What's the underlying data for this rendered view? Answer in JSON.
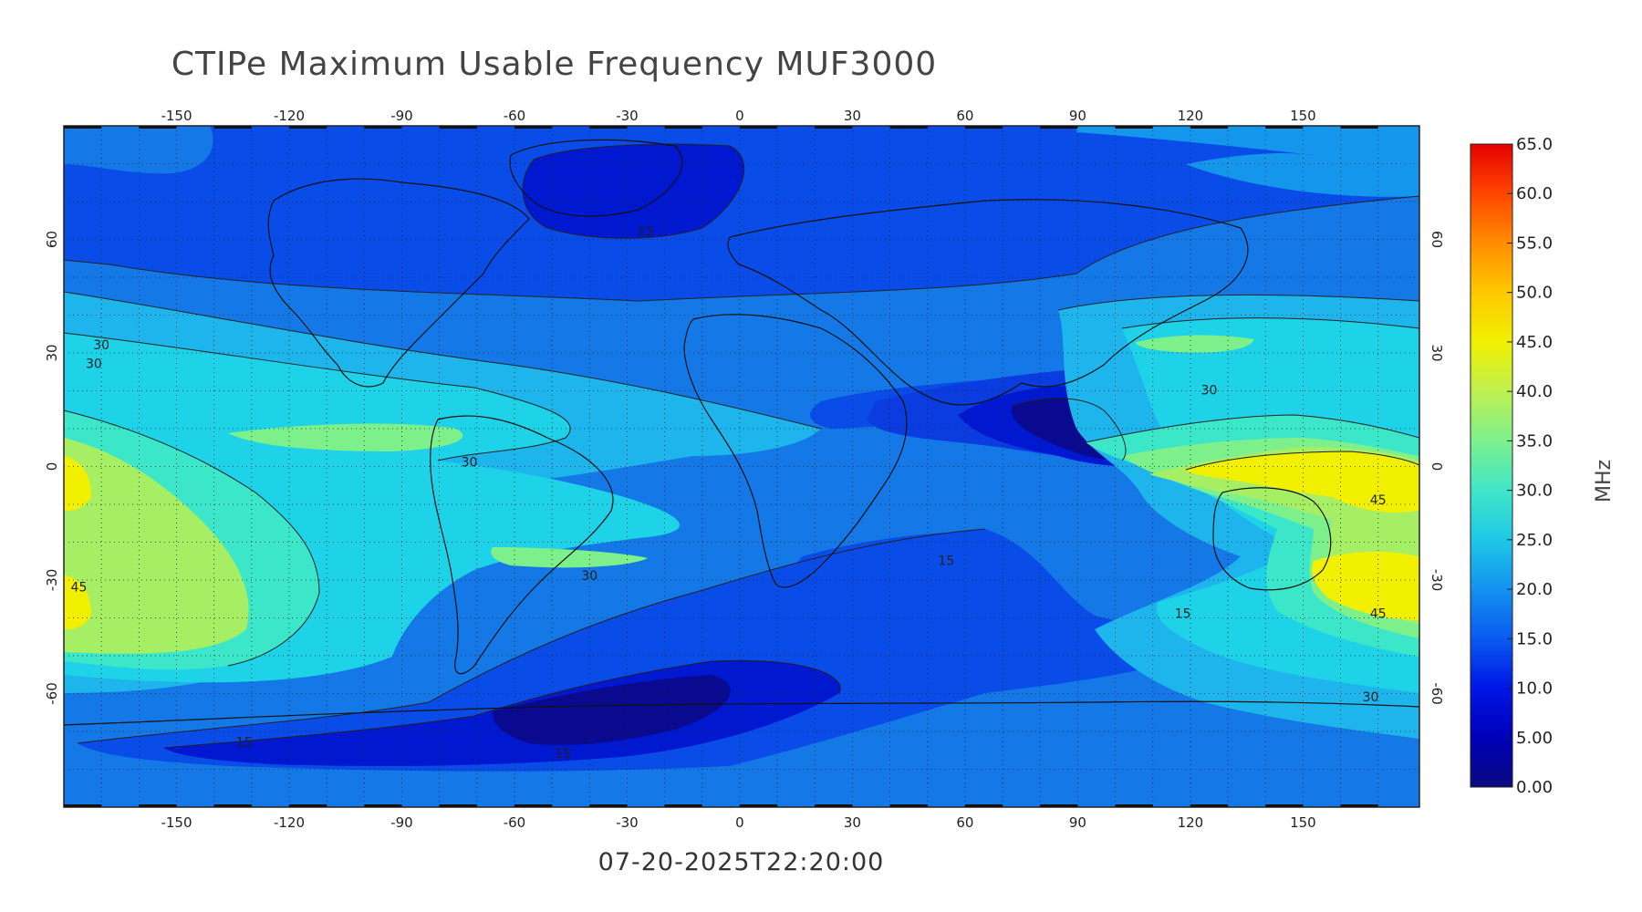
{
  "title": "CTIPe Maximum Usable Frequency MUF3000",
  "timestamp": "07-20-2025T22:20:00",
  "colorbar": {
    "unit": "MHz",
    "range": [
      0,
      65
    ],
    "ticks": [
      "65.0",
      "60.0",
      "55.0",
      "50.0",
      "45.0",
      "40.0",
      "35.0",
      "30.0",
      "25.0",
      "20.0",
      "15.0",
      "10.0",
      "5.00",
      "0.00"
    ],
    "colors": [
      "#0a0a80",
      "#0000b8",
      "#0016e6",
      "#0a5af0",
      "#1491f0",
      "#1ec8e6",
      "#40e6c8",
      "#7df08c",
      "#bef050",
      "#f0f000",
      "#ffc800",
      "#ff8c00",
      "#ff4600",
      "#e60000"
    ]
  },
  "axes": {
    "lon_ticks": [
      "-150",
      "-120",
      "-90",
      "-60",
      "-30",
      "0",
      "30",
      "60",
      "90",
      "120",
      "150"
    ],
    "lat_ticks": [
      "60",
      "30",
      "0",
      "-30",
      "-60"
    ]
  },
  "contour_labels": [
    {
      "text": "30",
      "lon": -170,
      "lat": 31
    },
    {
      "text": "30",
      "lon": -172,
      "lat": 26
    },
    {
      "text": "30",
      "lon": -72,
      "lat": 0
    },
    {
      "text": "30",
      "lon": -40,
      "lat": -30
    },
    {
      "text": "45",
      "lon": -176,
      "lat": -33
    },
    {
      "text": "15",
      "lon": -132,
      "lat": -74
    },
    {
      "text": "15",
      "lon": -47,
      "lat": -77
    },
    {
      "text": "15",
      "lon": -25,
      "lat": 61
    },
    {
      "text": "15",
      "lon": 55,
      "lat": -26
    },
    {
      "text": "15",
      "lon": 118,
      "lat": -40
    },
    {
      "text": "30",
      "lon": 125,
      "lat": 19
    },
    {
      "text": "45",
      "lon": 170,
      "lat": -10
    },
    {
      "text": "45",
      "lon": 170,
      "lat": -40
    },
    {
      "text": "30",
      "lon": 168,
      "lat": -62
    }
  ]
}
